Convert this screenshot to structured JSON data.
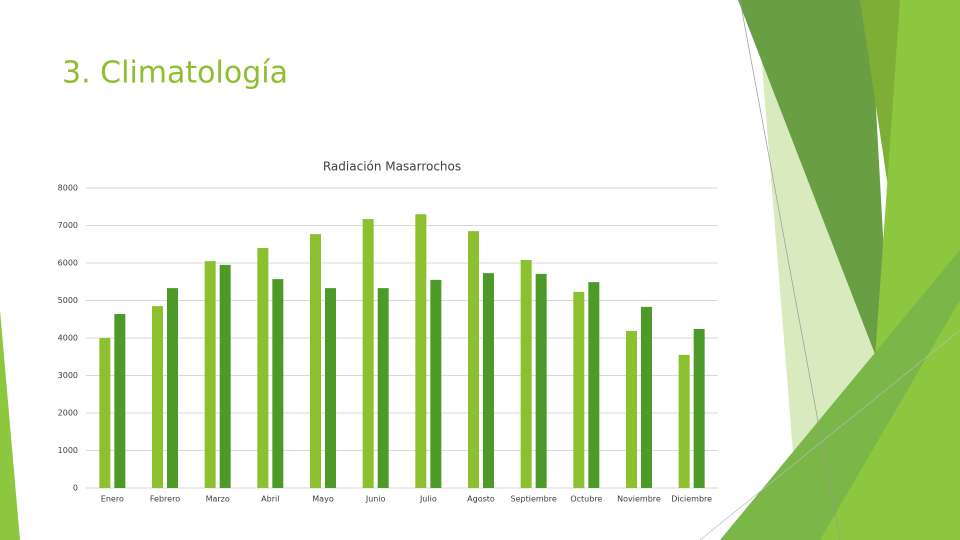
{
  "slide": {
    "title": "3. Climatología"
  },
  "chart_data": {
    "type": "bar",
    "title": "Radiación Masarrochos",
    "categories": [
      "Enero",
      "Febrero",
      "Marzo",
      "Abril",
      "Mayo",
      "Junio",
      "Julio",
      "Agosto",
      "Septiembre",
      "Octubre",
      "Noviembre",
      "Diciembre"
    ],
    "series": [
      {
        "color": "#8dc02e",
        "values": [
          4000,
          4850,
          6050,
          6400,
          6770,
          7170,
          7300,
          6850,
          6080,
          5230,
          4190,
          3550
        ]
      },
      {
        "color": "#4e9a28",
        "values": [
          4640,
          5330,
          5950,
          5570,
          5330,
          5330,
          5550,
          5730,
          5710,
          5490,
          4830,
          4240
        ]
      }
    ],
    "ylim": [
      0,
      8000
    ],
    "yticks": [
      0,
      1000,
      2000,
      3000,
      4000,
      5000,
      6000,
      7000,
      8000
    ],
    "grid": true
  }
}
